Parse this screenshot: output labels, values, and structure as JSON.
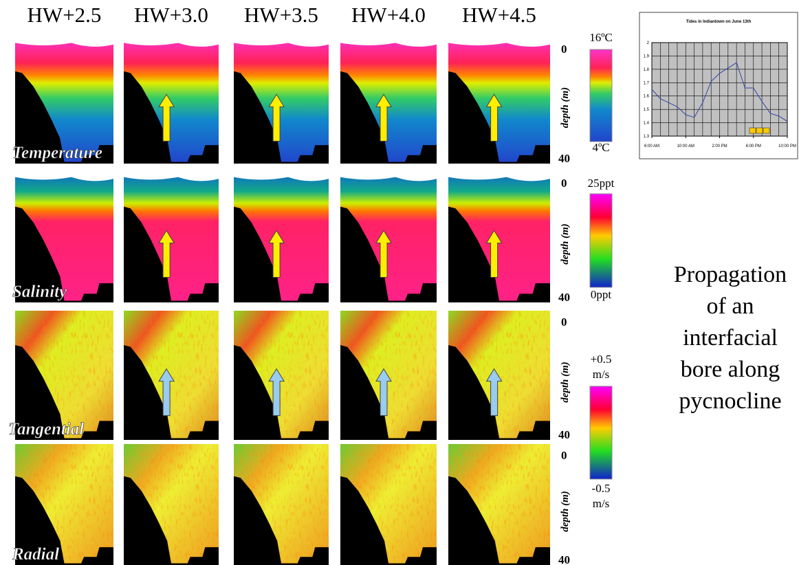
{
  "columns": [
    "HW+2.5",
    "HW+3.0",
    "HW+3.5",
    "HW+4.0",
    "HW+4.5"
  ],
  "rows": [
    {
      "label": "Temperature",
      "scale_top": [
        "16ºC"
      ],
      "scale_bottom": [
        "4ºC"
      ]
    },
    {
      "label": "Salinity",
      "scale_top": [
        "25ppt"
      ],
      "scale_bottom": [
        "0ppt"
      ]
    },
    {
      "label": "Tangential",
      "scale_top": [
        "+0.5",
        "m/s"
      ],
      "scale_bottom": [
        "-0.5",
        "m/s"
      ]
    },
    {
      "label": "Radial"
    }
  ],
  "depth_axis": {
    "label": "depth (m)",
    "top": "0",
    "bottom": "40"
  },
  "caption": [
    "Propagation",
    "of an",
    "interfacial",
    "bore along",
    "pycnocline"
  ],
  "chart_data": {
    "type": "line",
    "title": "Tides in Indiantown on June 13th",
    "x": [
      6,
      7,
      8,
      9,
      10,
      11,
      12,
      13,
      14,
      15,
      16,
      17,
      18,
      19,
      20,
      21,
      22
    ],
    "series": [
      {
        "color": "#3344aa",
        "values": [
          1.65,
          1.58,
          1.55,
          1.52,
          1.46,
          1.44,
          1.55,
          1.71,
          1.77,
          1.81,
          1.85,
          1.66,
          1.66,
          1.56,
          1.47,
          1.45,
          1.41
        ]
      }
    ],
    "xlim": [
      6,
      22
    ],
    "xticks": [
      {
        "value": 6,
        "label": "6:00 AM"
      },
      {
        "value": 10,
        "label": "10:00 AM"
      },
      {
        "value": 14,
        "label": "2:00 PM"
      },
      {
        "value": 18,
        "label": "6:00 PM"
      },
      {
        "value": 22,
        "label": "10:00 PM"
      }
    ],
    "ylim": [
      1.3,
      2
    ],
    "yticks": [
      1.3,
      1.4,
      1.5,
      1.6,
      1.7,
      1.8,
      1.9,
      2
    ],
    "grid": true
  }
}
